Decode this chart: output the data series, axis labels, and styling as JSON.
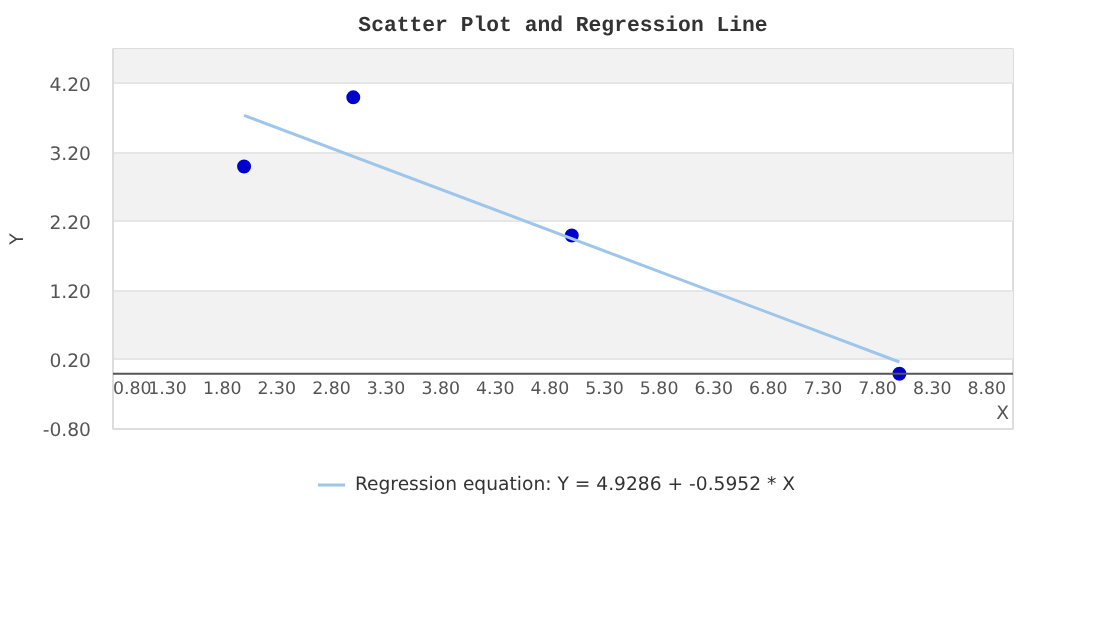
{
  "chart_data": {
    "type": "scatter",
    "title": "Scatter Plot and Regression Line",
    "xlabel": "X",
    "ylabel": "Y",
    "series": [
      {
        "color": "#0000cc",
        "x": [
          2,
          3,
          5,
          8
        ],
        "values": [
          3,
          4,
          2,
          0
        ],
        "marker": "circle"
      },
      {
        "type": "line",
        "name": "Regression equation: Y = 4.9286 + -0.5952 * X",
        "color": "#9ec5ea",
        "x": [
          2,
          8
        ],
        "values": [
          3.74,
          0.17
        ]
      }
    ],
    "xlim": [
      0.8,
      9.04
    ],
    "ylim": [
      -0.8,
      4.7
    ],
    "xticks": [
      {
        "value": 0.8,
        "label": "0.80"
      },
      {
        "value": 1.3,
        "label": "1.30"
      },
      {
        "value": 1.8,
        "label": "1.80"
      },
      {
        "value": 2.3,
        "label": "2.30"
      },
      {
        "value": 2.8,
        "label": "2.80"
      },
      {
        "value": 3.3,
        "label": "3.30"
      },
      {
        "value": 3.8,
        "label": "3.80"
      },
      {
        "value": 4.3,
        "label": "4.30"
      },
      {
        "value": 4.8,
        "label": "4.80"
      },
      {
        "value": 5.3,
        "label": "5.30"
      },
      {
        "value": 5.8,
        "label": "5.80"
      },
      {
        "value": 6.3,
        "label": "6.30"
      },
      {
        "value": 6.8,
        "label": "6.80"
      },
      {
        "value": 7.3,
        "label": "7.30"
      },
      {
        "value": 7.8,
        "label": "7.80"
      },
      {
        "value": 8.3,
        "label": "8.30"
      },
      {
        "value": 8.8,
        "label": "8.80"
      }
    ],
    "yticks": [
      {
        "value": -0.8,
        "label": "-0.80"
      },
      {
        "value": 0.2,
        "label": "0.20"
      },
      {
        "value": 1.2,
        "label": "1.20"
      },
      {
        "value": 2.2,
        "label": "2.20"
      },
      {
        "value": 3.2,
        "label": "3.20"
      },
      {
        "value": 4.2,
        "label": "4.20"
      }
    ],
    "grid": "y",
    "legend": "bottom"
  }
}
